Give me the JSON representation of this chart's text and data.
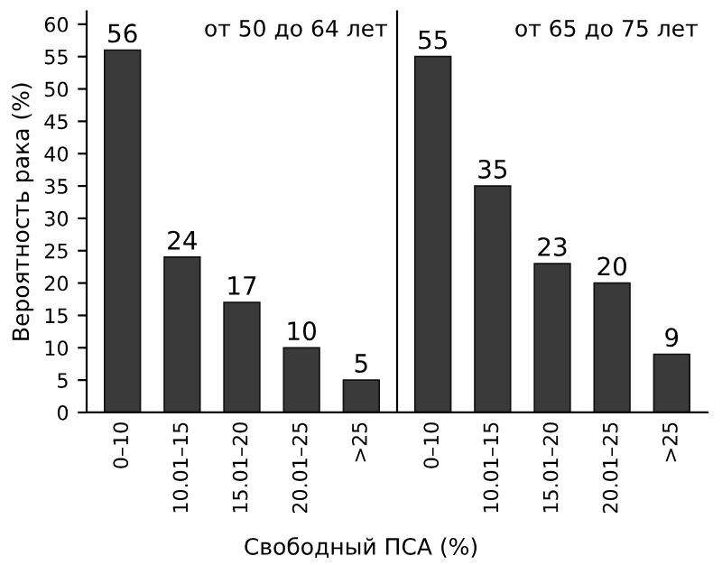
{
  "chart_data": [
    {
      "type": "bar",
      "ylabel": "Вероятность рака (%)",
      "xlabel": "Свободный ПСА (%)",
      "annotations": [
        "от 50 до 64 лет"
      ],
      "categories": [
        "0–10",
        "10.01–15",
        "15.01–20",
        "20.01–25",
        ">25"
      ],
      "values": [
        56,
        24,
        17,
        10,
        5
      ],
      "color": "#3a3a3a",
      "data_labels": true,
      "ylim": [
        0,
        62
      ],
      "yticks": [
        0,
        5,
        10,
        15,
        20,
        25,
        30,
        35,
        40,
        45,
        50,
        55,
        60
      ],
      "grid": false
    },
    {
      "type": "bar",
      "annotations": [
        "от 65 до 75 лет"
      ],
      "categories": [
        "0–10",
        "10.01–15",
        "15.01–20",
        "20.01–25",
        ">25"
      ],
      "values": [
        55,
        35,
        23,
        20,
        9
      ],
      "color": "#3a3a3a",
      "data_labels": true,
      "ylim": [
        0,
        62
      ],
      "yticks": [
        0,
        5,
        10,
        15,
        20,
        25,
        30,
        35,
        40,
        45,
        50,
        55,
        60
      ],
      "grid": false,
      "tick_labels": "x"
    }
  ]
}
